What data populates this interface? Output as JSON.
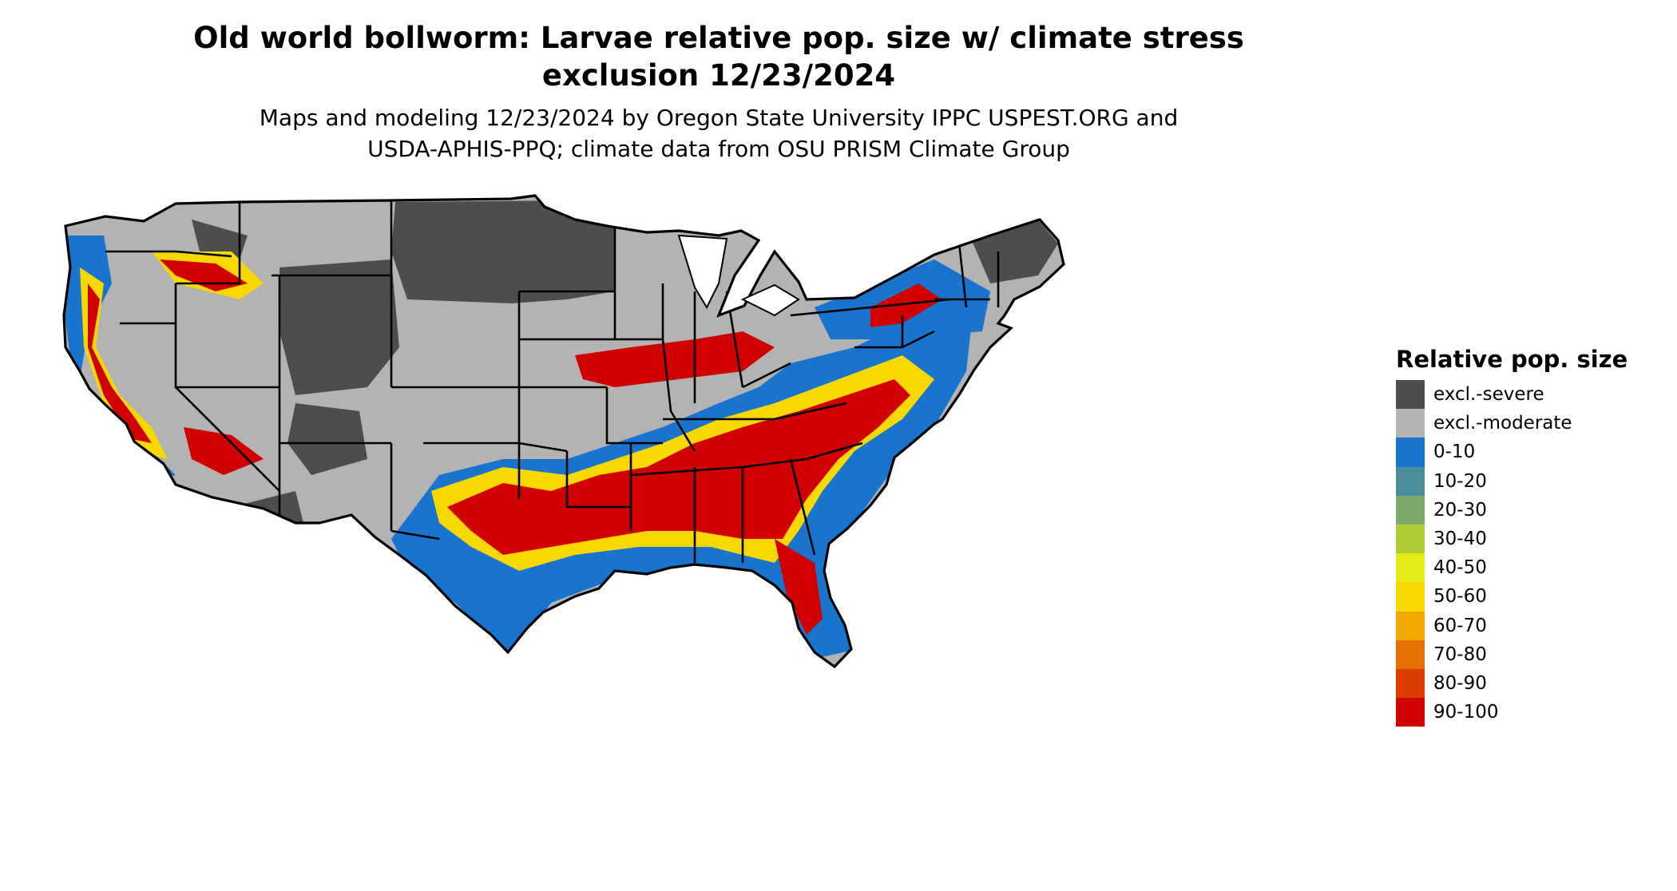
{
  "title_line1": "Old world bollworm: Larvae relative pop. size w/ climate stress",
  "title_line2": "exclusion 12/23/2024",
  "subtitle_line1": "Maps and modeling 12/23/2024 by Oregon State University IPPC USPEST.ORG and",
  "subtitle_line2": "USDA-APHIS-PPQ; climate data from OSU PRISM Climate Group",
  "legend": {
    "title": "Relative pop. size",
    "items": [
      {
        "label": "excl.-severe",
        "color": "#4d4d4d"
      },
      {
        "label": "excl.-moderate",
        "color": "#b3b3b3"
      },
      {
        "label": "0-10",
        "color": "#1874cd"
      },
      {
        "label": "10-20",
        "color": "#4a8e9e"
      },
      {
        "label": "20-30",
        "color": "#7daa6c"
      },
      {
        "label": "30-40",
        "color": "#b0cb38"
      },
      {
        "label": "40-50",
        "color": "#e3ec17"
      },
      {
        "label": "50-60",
        "color": "#f7d800"
      },
      {
        "label": "60-70",
        "color": "#f0a800"
      },
      {
        "label": "70-80",
        "color": "#e67000"
      },
      {
        "label": "80-90",
        "color": "#db3d00"
      },
      {
        "label": "90-100",
        "color": "#d10000"
      }
    ]
  },
  "map": {
    "area_shown": "contiguous United States",
    "state_boundaries": true,
    "colors": {
      "severe": "#4d4d4d",
      "moderate": "#b3b3b3",
      "low": "#1874cd",
      "mid": "#f7d800",
      "high": "#d10000",
      "border": "#000000"
    }
  }
}
